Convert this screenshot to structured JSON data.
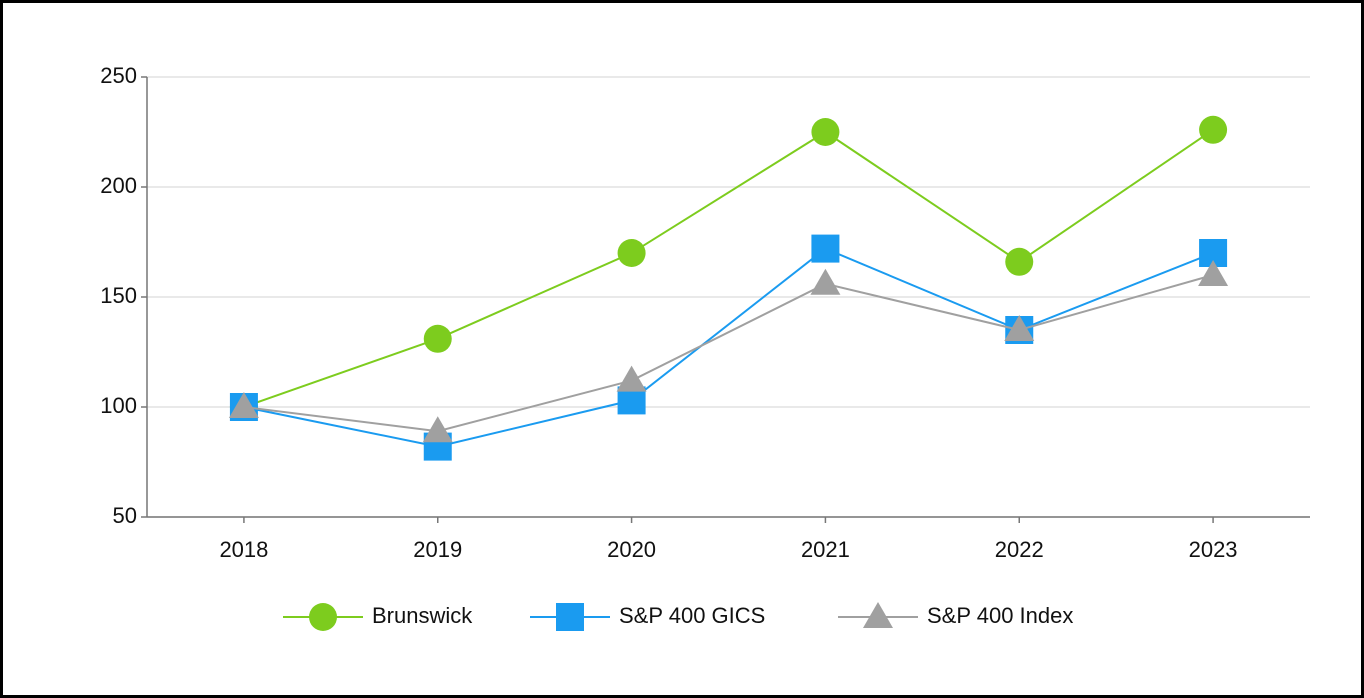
{
  "chart_data": {
    "type": "line",
    "categories": [
      "2018",
      "2019",
      "2020",
      "2021",
      "2022",
      "2023"
    ],
    "series": [
      {
        "name": "Brunswick",
        "color": "#7dcc1e",
        "marker": "circle",
        "values": [
          100,
          131,
          170,
          225,
          166,
          226
        ]
      },
      {
        "name": "S&P 400 GICS",
        "color": "#1a9bf0",
        "marker": "square",
        "values": [
          100,
          82,
          103,
          172,
          135,
          170
        ]
      },
      {
        "name": "S&P 400 Index",
        "color": "#a0a0a0",
        "marker": "triangle",
        "values": [
          100,
          89,
          112,
          156,
          135,
          160
        ]
      }
    ],
    "ylim": [
      50,
      250
    ],
    "yticks": [
      50,
      100,
      150,
      200,
      250
    ],
    "grid": true,
    "legend": "bottom"
  }
}
